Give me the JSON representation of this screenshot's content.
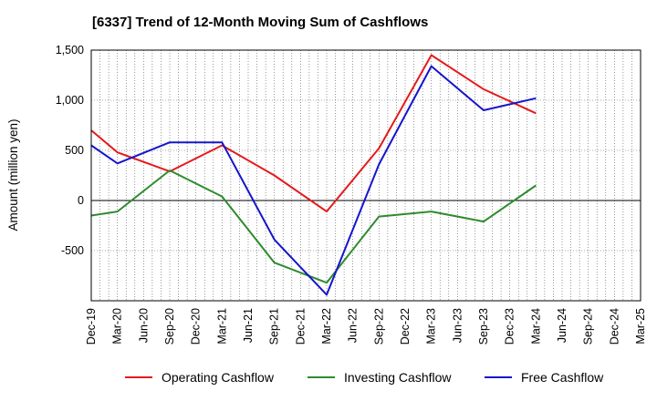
{
  "chart_data": {
    "type": "line",
    "title": "[6337]  Trend of 12-Month Moving Sum of Cashflows",
    "xlabel": "",
    "ylabel": "Amount (million yen)",
    "categories": [
      "Dec-19",
      "Mar-20",
      "Jun-20",
      "Sep-20",
      "Dec-20",
      "Mar-21",
      "Jun-21",
      "Sep-21",
      "Dec-21",
      "Mar-22",
      "Jun-22",
      "Sep-22",
      "Dec-22",
      "Mar-23",
      "Jun-23",
      "Sep-23",
      "Dec-23",
      "Mar-24",
      "Jun-24",
      "Sep-24",
      "Dec-24",
      "Mar-25"
    ],
    "ylim": [
      -1000,
      1500
    ],
    "yticks": [
      1500,
      1000,
      500,
      0,
      -500
    ],
    "ytick_labels": [
      "1,500",
      "1,000",
      "500",
      "0",
      "-500"
    ],
    "grid": true,
    "legend_position": "bottom",
    "series": [
      {
        "name": "Operating Cashflow",
        "color": "#e41a1c",
        "values": [
          700,
          480,
          null,
          290,
          null,
          550,
          null,
          250,
          null,
          -110,
          null,
          520,
          null,
          1450,
          null,
          1110,
          null,
          870,
          null,
          null,
          null,
          null
        ]
      },
      {
        "name": "Investing Cashflow",
        "color": "#2e8b2e",
        "values": [
          -150,
          -110,
          null,
          300,
          null,
          40,
          null,
          -620,
          null,
          -820,
          null,
          -160,
          null,
          -110,
          null,
          -210,
          null,
          150,
          null,
          null,
          null,
          null
        ]
      },
      {
        "name": "Free Cashflow",
        "color": "#1515cc",
        "values": [
          550,
          370,
          null,
          580,
          null,
          580,
          null,
          -390,
          null,
          -940,
          null,
          360,
          null,
          1340,
          null,
          900,
          null,
          1020,
          null,
          null,
          null,
          null
        ]
      }
    ]
  }
}
